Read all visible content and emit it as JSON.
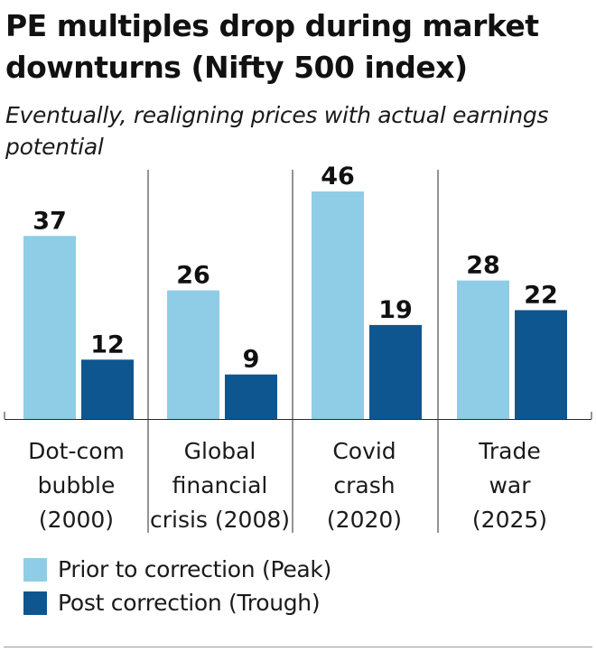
{
  "chart_data": {
    "type": "bar",
    "title": "PE multiples drop during market downturns (Nifty 500 index)",
    "subtitle": "Eventually, realigning prices with actual earnings potential",
    "categories": [
      [
        "Dot-com",
        "bubble",
        "(2000)"
      ],
      [
        "Global",
        "financial",
        "crisis (2008)"
      ],
      [
        "Covid",
        "crash",
        "(2020)"
      ],
      [
        "Trade",
        "war",
        "(2025)"
      ]
    ],
    "series": [
      {
        "name": "Prior to correction (Peak)",
        "color": "#8fcde6",
        "values": [
          37,
          26,
          46,
          28
        ]
      },
      {
        "name": "Post correction (Trough)",
        "color": "#0e5690",
        "values": [
          12,
          9,
          19,
          22
        ]
      }
    ],
    "ylim": [
      0,
      46
    ],
    "xlabel": "",
    "ylabel": "",
    "grid": false,
    "legend": "bottom-left",
    "data_labels": true
  }
}
